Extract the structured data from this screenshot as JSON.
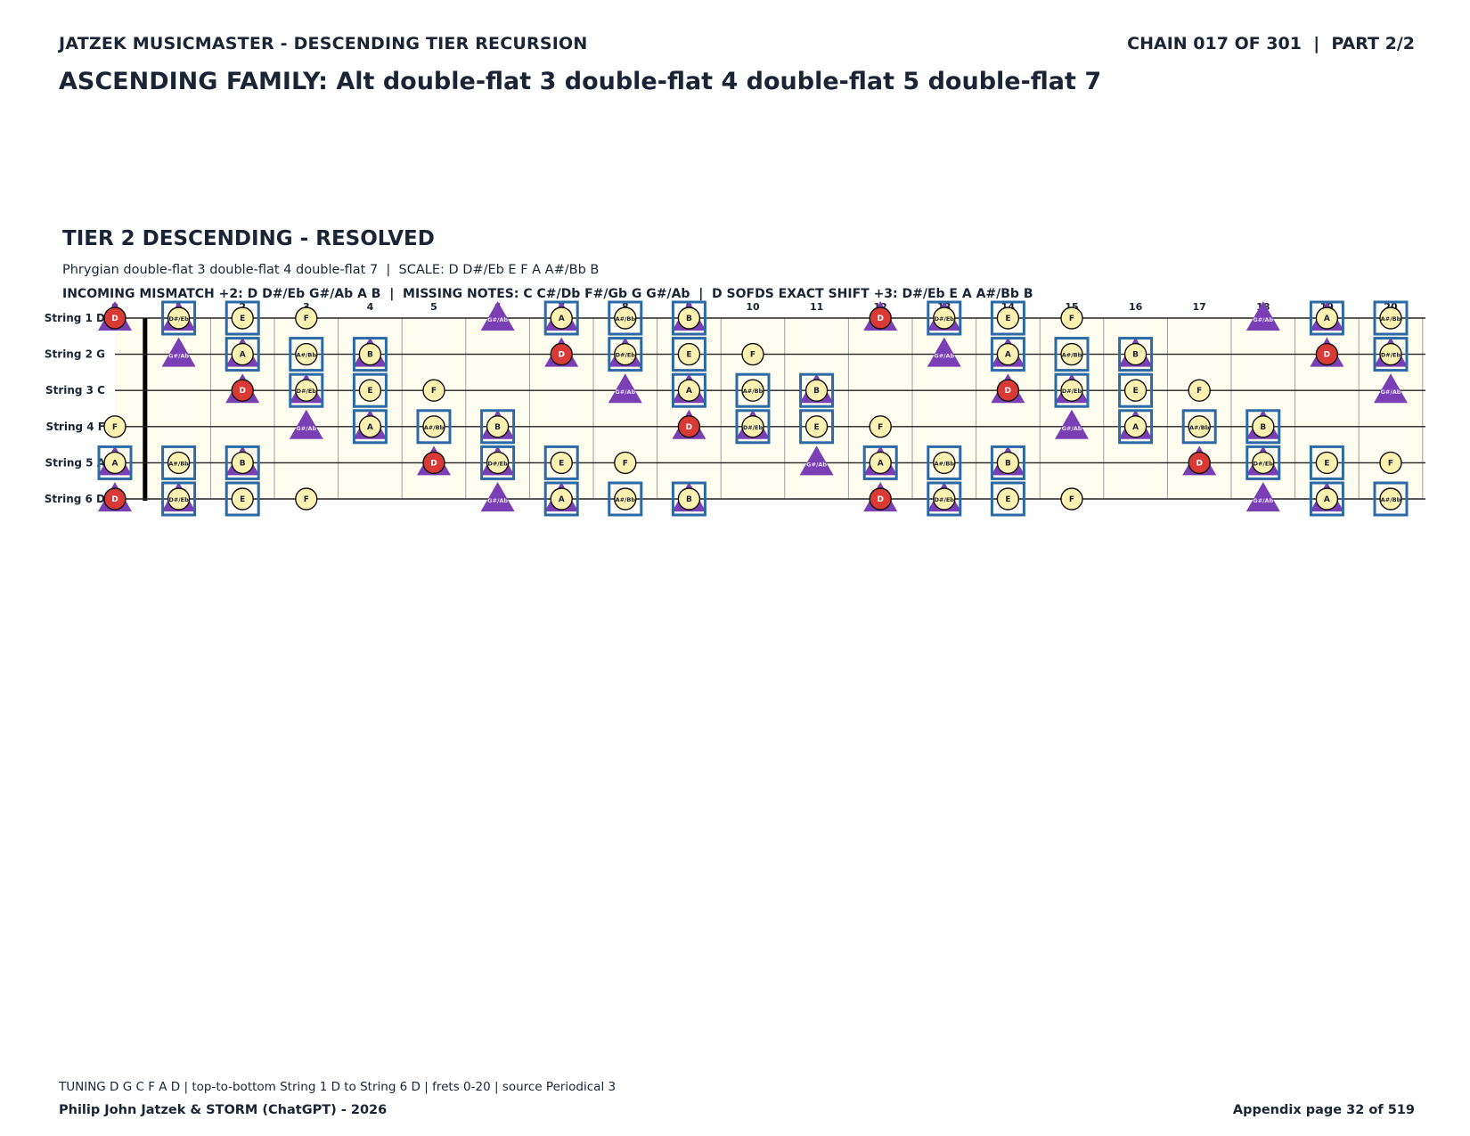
{
  "header": {
    "left": "JATZEK MUSICMASTER - DESCENDING TIER RECURSION",
    "right": "CHAIN 017 OF 301  |  PART 2/2"
  },
  "family_title": "ASCENDING FAMILY: Alt double-flat 3 double-flat 4 double-flat 5 double-flat 7",
  "tier": {
    "title": "TIER 2 DESCENDING - RESOLVED",
    "scale_line": "Phrygian double-flat 3 double-flat 4 double-flat 7  |  SCALE: D D#/Eb E F A A#/Bb B",
    "mismatch_line": "INCOMING MISMATCH +2: D D#/Eb G#/Ab A B  |  MISSING NOTES: C C#/Db F#/Gb G G#/Ab  |  D SOFDS EXACT SHIFT +3: D#/Eb E A A#/Bb B"
  },
  "fretboard": {
    "fret_numbers": [
      "0",
      "1",
      "2",
      "3",
      "4",
      "5",
      "6",
      "7",
      "8",
      "9",
      "10",
      "11",
      "12",
      "13",
      "14",
      "15",
      "16",
      "17",
      "18",
      "19",
      "20"
    ],
    "strings": [
      {
        "label": "String 1 D",
        "tuning": "D"
      },
      {
        "label": "String 2 G",
        "tuning": "G"
      },
      {
        "label": "String 3 C",
        "tuning": "C"
      },
      {
        "label": "String 4 F",
        "tuning": "F"
      },
      {
        "label": "String 5 A",
        "tuning": "A"
      },
      {
        "label": "String 6 D",
        "tuning": "D"
      }
    ],
    "chromatic": [
      "C",
      "C#/Db",
      "D",
      "D#/Eb",
      "E",
      "F",
      "F#/Gb",
      "G",
      "G#/Ab",
      "A",
      "A#/Bb",
      "B"
    ],
    "root_note": "D",
    "scale_notes": [
      "D",
      "D#/Eb",
      "E",
      "F",
      "A",
      "A#/Bb",
      "B"
    ],
    "shift_notes": [
      "D#/Eb",
      "E",
      "A",
      "A#/Bb",
      "B"
    ],
    "mismatch_notes": [
      "D",
      "D#/Eb",
      "G#/Ab",
      "A",
      "B"
    ],
    "legend_colors": {
      "scale_fill": "#fdf1b1",
      "root_fill": "#d93a36",
      "mismatch_triangle": "#7b3fb5",
      "shift_box": "#2b6aa6",
      "board_bg": "#fffdf0"
    }
  },
  "footer": {
    "line": "TUNING D G C F A D | top-to-bottom String 1 D to String 6 D | frets 0-20 | source Periodical 3",
    "left": "Philip John Jatzek & STORM (ChatGPT) - 2026",
    "right": "Appendix page 32 of 519"
  }
}
